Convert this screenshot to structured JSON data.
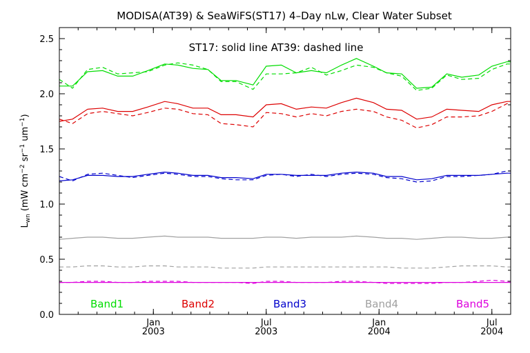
{
  "chart_data": {
    "type": "line",
    "title": "MODISA(AT39) & SeaWiFS(ST17) 4–Day nLw, Clear Water Subset",
    "annotation": "ST17: solid line   AT39: dashed line",
    "ylabel": {
      "base": "L",
      "sub": "wn",
      "open": "(mW cm",
      "sup1": "−2",
      "sr": " sr",
      "sup2": "−1",
      "um": " um",
      "sup3": "−1",
      "close": ")"
    },
    "ylim": [
      0.0,
      2.6
    ],
    "yticks": [
      0.0,
      0.5,
      1.0,
      1.5,
      2.0,
      2.5
    ],
    "ytick_labels": [
      "0.0",
      "0.5",
      "1.0",
      "1.5",
      "2.0",
      "2.5"
    ],
    "xlim": [
      0,
      24
    ],
    "xtick_positions": [
      5,
      11,
      17,
      23
    ],
    "xtick_labels": [
      {
        "month": "Jan",
        "year": "2003"
      },
      {
        "month": "Jul",
        "year": "2003"
      },
      {
        "month": "Jan",
        "year": "2004"
      },
      {
        "month": "Jul",
        "year": "2004"
      }
    ],
    "x": [
      0,
      0.7,
      1.5,
      2.3,
      3.1,
      3.9,
      4.7,
      5.6,
      6.3,
      7.1,
      7.9,
      8.6,
      9.4,
      10.3,
      11.0,
      11.8,
      12.6,
      13.4,
      14.2,
      15.0,
      15.8,
      16.7,
      17.4,
      18.2,
      19.0,
      19.8,
      20.6,
      21.4,
      22.3,
      23.0,
      23.8,
      24.0
    ],
    "legend": [
      {
        "label": "Band1",
        "color": "#00dd00"
      },
      {
        "label": "Band2",
        "color": "#dd0000"
      },
      {
        "label": "Band3",
        "color": "#0000cc"
      },
      {
        "label": "Band4",
        "color": "#a0a0a0"
      },
      {
        "label": "Band5",
        "color": "#dd00dd"
      }
    ],
    "series": [
      {
        "name": "Band1",
        "sensor": "ST17",
        "style": "solid",
        "color": "#00dd00",
        "values": [
          2.07,
          2.07,
          2.2,
          2.21,
          2.16,
          2.16,
          2.21,
          2.27,
          2.26,
          2.23,
          2.22,
          2.12,
          2.12,
          2.08,
          2.25,
          2.26,
          2.19,
          2.21,
          2.19,
          2.26,
          2.32,
          2.25,
          2.19,
          2.18,
          2.05,
          2.06,
          2.18,
          2.15,
          2.17,
          2.25,
          2.29,
          2.29
        ]
      },
      {
        "name": "Band1",
        "sensor": "AT39",
        "style": "dashed",
        "color": "#00dd00",
        "values": [
          2.13,
          2.05,
          2.22,
          2.24,
          2.18,
          2.19,
          2.2,
          2.26,
          2.28,
          2.26,
          2.22,
          2.11,
          2.11,
          2.04,
          2.18,
          2.18,
          2.19,
          2.24,
          2.17,
          2.21,
          2.26,
          2.24,
          2.19,
          2.16,
          2.03,
          2.05,
          2.17,
          2.13,
          2.14,
          2.22,
          2.27,
          2.27
        ]
      },
      {
        "name": "Band2",
        "sensor": "ST17",
        "style": "solid",
        "color": "#dd0000",
        "values": [
          1.75,
          1.77,
          1.86,
          1.87,
          1.84,
          1.84,
          1.88,
          1.93,
          1.91,
          1.87,
          1.87,
          1.81,
          1.81,
          1.79,
          1.9,
          1.91,
          1.86,
          1.88,
          1.87,
          1.92,
          1.96,
          1.92,
          1.86,
          1.85,
          1.77,
          1.79,
          1.86,
          1.85,
          1.84,
          1.9,
          1.93,
          1.93
        ]
      },
      {
        "name": "Band2",
        "sensor": "AT39",
        "style": "dashed",
        "color": "#dd0000",
        "values": [
          1.77,
          1.73,
          1.82,
          1.84,
          1.82,
          1.8,
          1.83,
          1.87,
          1.86,
          1.82,
          1.81,
          1.73,
          1.72,
          1.7,
          1.83,
          1.82,
          1.79,
          1.82,
          1.8,
          1.84,
          1.86,
          1.84,
          1.79,
          1.76,
          1.69,
          1.72,
          1.79,
          1.79,
          1.8,
          1.84,
          1.91,
          1.91
        ]
      },
      {
        "name": "Band3",
        "sensor": "ST17",
        "style": "solid",
        "color": "#0000cc",
        "values": [
          1.21,
          1.22,
          1.26,
          1.26,
          1.25,
          1.25,
          1.27,
          1.29,
          1.28,
          1.26,
          1.26,
          1.24,
          1.24,
          1.23,
          1.27,
          1.27,
          1.26,
          1.26,
          1.26,
          1.28,
          1.29,
          1.28,
          1.25,
          1.25,
          1.22,
          1.23,
          1.26,
          1.26,
          1.26,
          1.27,
          1.28,
          1.28
        ]
      },
      {
        "name": "Band3",
        "sensor": "AT39",
        "style": "dashed",
        "color": "#0000cc",
        "values": [
          1.25,
          1.21,
          1.27,
          1.28,
          1.26,
          1.24,
          1.26,
          1.28,
          1.27,
          1.25,
          1.25,
          1.23,
          1.22,
          1.22,
          1.26,
          1.27,
          1.25,
          1.27,
          1.25,
          1.27,
          1.28,
          1.27,
          1.24,
          1.23,
          1.2,
          1.21,
          1.25,
          1.25,
          1.26,
          1.27,
          1.3,
          1.3
        ]
      },
      {
        "name": "Band4",
        "sensor": "ST17",
        "style": "solid",
        "color": "#a0a0a0",
        "values": [
          0.68,
          0.69,
          0.7,
          0.7,
          0.69,
          0.69,
          0.7,
          0.71,
          0.7,
          0.7,
          0.7,
          0.69,
          0.69,
          0.69,
          0.7,
          0.7,
          0.69,
          0.7,
          0.7,
          0.7,
          0.71,
          0.7,
          0.69,
          0.69,
          0.68,
          0.69,
          0.7,
          0.7,
          0.69,
          0.69,
          0.7,
          0.7
        ]
      },
      {
        "name": "Band4",
        "sensor": "AT39",
        "style": "dashed",
        "color": "#a0a0a0",
        "values": [
          0.43,
          0.43,
          0.44,
          0.44,
          0.43,
          0.43,
          0.44,
          0.44,
          0.43,
          0.43,
          0.43,
          0.42,
          0.42,
          0.42,
          0.43,
          0.43,
          0.43,
          0.43,
          0.43,
          0.43,
          0.43,
          0.43,
          0.43,
          0.42,
          0.42,
          0.42,
          0.43,
          0.44,
          0.44,
          0.44,
          0.43,
          0.43
        ]
      },
      {
        "name": "Band5",
        "sensor": "ST17",
        "style": "solid",
        "color": "#dd00dd",
        "values": [
          0.29,
          0.29,
          0.29,
          0.29,
          0.29,
          0.29,
          0.29,
          0.29,
          0.29,
          0.29,
          0.29,
          0.29,
          0.29,
          0.29,
          0.29,
          0.29,
          0.29,
          0.29,
          0.29,
          0.29,
          0.29,
          0.29,
          0.29,
          0.29,
          0.29,
          0.29,
          0.29,
          0.29,
          0.29,
          0.29,
          0.29,
          0.29
        ]
      },
      {
        "name": "Band5",
        "sensor": "AT39",
        "style": "dashed",
        "color": "#dd00dd",
        "values": [
          0.29,
          0.29,
          0.3,
          0.3,
          0.29,
          0.29,
          0.3,
          0.3,
          0.3,
          0.29,
          0.29,
          0.29,
          0.29,
          0.28,
          0.3,
          0.3,
          0.29,
          0.29,
          0.29,
          0.3,
          0.3,
          0.29,
          0.28,
          0.28,
          0.28,
          0.28,
          0.29,
          0.29,
          0.3,
          0.31,
          0.3,
          0.3
        ]
      }
    ]
  }
}
